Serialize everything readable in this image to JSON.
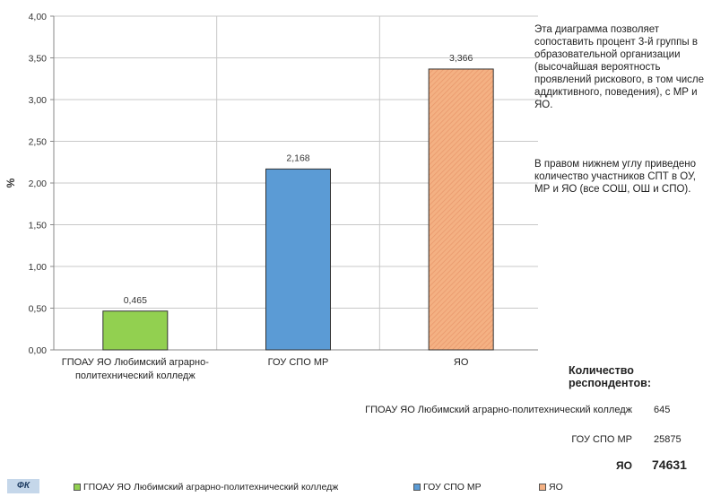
{
  "chart_data": {
    "type": "bar",
    "title": "",
    "ylabel": "%",
    "xlabel": "",
    "ylim": [
      0,
      4
    ],
    "yticks": [
      "0,00",
      "0,50",
      "1,00",
      "1,50",
      "2,00",
      "2,50",
      "3,00",
      "3,50",
      "4,00"
    ],
    "grid": true,
    "legend_position": "bottom",
    "categories": [
      "ГПОАУ ЯО Любимский аграрно-политехнический колледж",
      "ГОУ СПО МР",
      "ЯО"
    ],
    "category_labels": [
      [
        "ГПОАУ ЯО Любимский аграрно-",
        "политехнический колледж"
      ],
      [
        "ГОУ СПО МР"
      ],
      [
        "ЯО"
      ]
    ],
    "values": [
      0.465,
      2.168,
      3.366
    ],
    "value_labels": [
      "0,465",
      "2,168",
      "3,366"
    ],
    "colors": [
      "#92d050",
      "#5b9bd5",
      "#f4b183"
    ]
  },
  "side_notes": {
    "note1": "Эта диаграмма позволяет сопоставить процент 3-й группы в образовательной организации (высочайшая вероятность проявлений рискового, в том числе аддиктивного, поведения), с МР и ЯО.",
    "note2": "В правом нижнем углу приведено количество участников СПТ в ОУ, МР и ЯО (все СОШ, ОШ и СПО)."
  },
  "respondents": {
    "title": "Количество респондентов:",
    "rows": [
      {
        "name": "ГПОАУ ЯО Любимский аграрно-политехнический колледж",
        "count": "645"
      },
      {
        "name": "ГОУ СПО МР",
        "count": "25875"
      },
      {
        "name": "ЯО",
        "count": "74631"
      }
    ]
  },
  "legend": [
    {
      "label": "ГПОАУ ЯО Любимский аграрно-политехнический колледж",
      "color": "#92d050"
    },
    {
      "label": "ГОУ СПО МР",
      "color": "#5b9bd5"
    },
    {
      "label": "ЯО",
      "color": "#f4b183"
    }
  ],
  "badge": "ФК"
}
